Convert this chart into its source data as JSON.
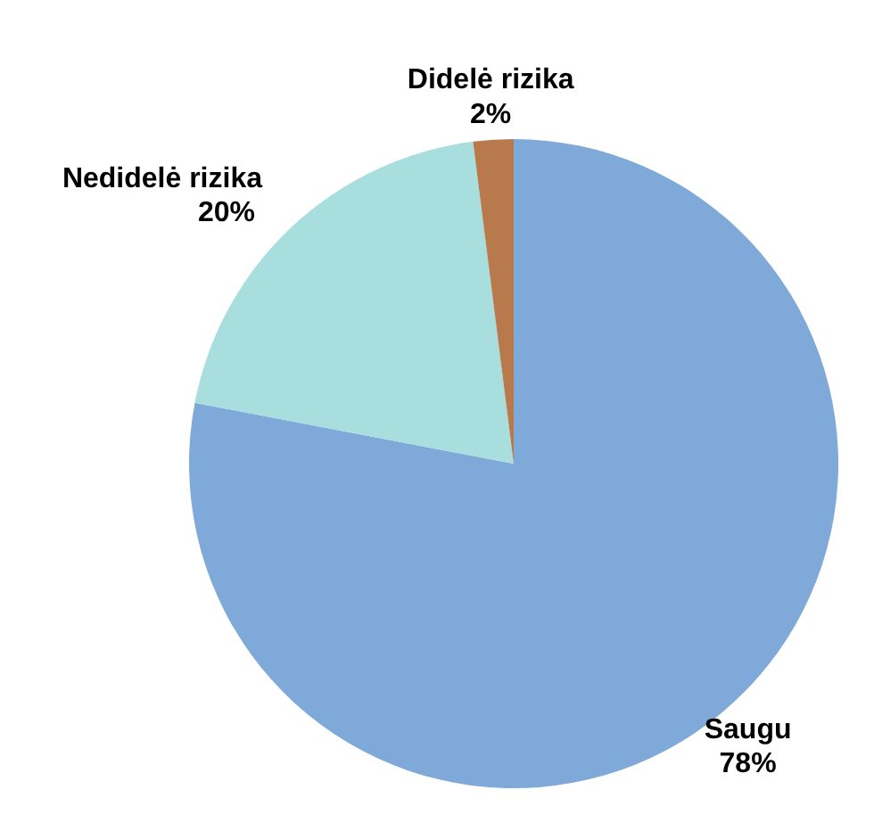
{
  "chart_data": {
    "type": "pie",
    "categories": [
      "Saugu",
      "Nedidelė rizika",
      "Didelė rizika"
    ],
    "values": [
      78,
      20,
      2
    ],
    "value_labels": [
      "78%",
      "20%",
      "2%"
    ],
    "colors": [
      "#7fa9d8",
      "#a8dede",
      "#b87a4c"
    ]
  }
}
